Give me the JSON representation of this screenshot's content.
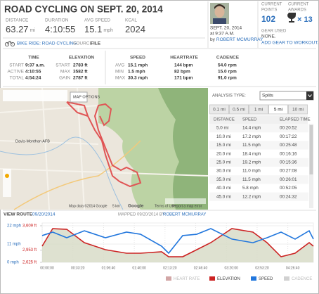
{
  "header": {
    "title": "ROAD CYCLING ON SEPT. 20, 2014",
    "stats": [
      {
        "label": "DISTANCE",
        "value": "63.27",
        "unit": "mi"
      },
      {
        "label": "DURATION",
        "value": "4:10:55"
      },
      {
        "label": "AVG SPEED",
        "value": "15.1",
        "unit": "mph"
      },
      {
        "label": "KCAL",
        "value": "2024"
      }
    ],
    "activity": "BIKE RIDE: ROAD CYCLING",
    "source_label": "SOURCE",
    "source": "FILE"
  },
  "profile": {
    "date": "SEPT. 20, 2014",
    "time": "at 9:37 A.M.",
    "by": "by",
    "user": "ROBERT MCMURRAY",
    "points_label": [
      "CURRENT",
      "POINTS"
    ],
    "points": "102",
    "awards_label": [
      "CURRENT",
      "AWARDS"
    ],
    "awards": "× 13",
    "gear_label": "GEAR USED",
    "gear": "NONE.",
    "gear_link": "ADD GEAR TO WORKOUT."
  },
  "summary": {
    "blocks": [
      {
        "title": "TIME",
        "rows": [
          [
            "START",
            "9:37 a.m."
          ],
          [
            "ACTIVE",
            "4:10:55"
          ],
          [
            "TOTAL",
            "4:54:24"
          ]
        ]
      },
      {
        "title": "ELEVATION",
        "rows": [
          [
            "START",
            "2783 ft"
          ],
          [
            "MAX",
            "3582 ft"
          ],
          [
            "GAIN",
            "2787 ft"
          ]
        ]
      }
    ],
    "row_labels": [
      "AVG",
      "MIN",
      "MAX"
    ],
    "metrics": [
      {
        "title": "SPEED",
        "values": [
          "15.1 mph",
          "1.5 mph",
          "30.3 mph"
        ]
      },
      {
        "title": "HEARTRATE",
        "values": [
          "144 bpm",
          "82 bpm",
          "171 bpm"
        ]
      },
      {
        "title": "CADENCE",
        "values": [
          "54.0 rpm",
          "15.0 rpm",
          "91.0 rpm"
        ]
      }
    ]
  },
  "map": {
    "options": "MAP OPTIONS",
    "place": "Davis-Monthan AFB",
    "attribution": "Map data ©2014 Google",
    "scale": "5 km",
    "terms": "Terms of Use",
    "report": "Report a map error",
    "logo": "Google"
  },
  "splits": {
    "label": "ANALYSIS TYPE:",
    "type": "Splits",
    "tabs": [
      "0.1 mi",
      "0.5 mi",
      "1 mi",
      "5 mi",
      "10 mi"
    ],
    "active_tab": 3,
    "columns": [
      "DISTANCE",
      "SPEED",
      "ELAPSED TIME"
    ],
    "rows": [
      [
        "5.0 mi",
        "14.4 mph",
        "00:20:52"
      ],
      [
        "10.0 mi",
        "17.2 mph",
        "00:17:22"
      ],
      [
        "15.0 mi",
        "11.5 mph",
        "00:25:48"
      ],
      [
        "20.0 mi",
        "18.4 mph",
        "00:16:16"
      ],
      [
        "25.0 mi",
        "19.2 mph",
        "00:15:36"
      ],
      [
        "30.0 mi",
        "11.0 mph",
        "00:27:08"
      ],
      [
        "35.0 mi",
        "11.5 mph",
        "00:26:01"
      ],
      [
        "40.0 mi",
        "5.8 mph",
        "00:52:05"
      ],
      [
        "45.0 mi",
        "12.2 mph",
        "00:24:32"
      ]
    ]
  },
  "route": {
    "view": "VIEW ROUTE",
    "view_date": "09/20/2014",
    "mapped": "MAPPED 09/20/2014 BY",
    "user": "ROBERT MCMURRAY"
  },
  "chart_data": {
    "type": "line",
    "x": [
      0,
      686,
      1602,
      2746,
      4119,
      5491,
      6407,
      7780,
      8237,
      9152,
      10068,
      10983,
      12356,
      13728,
      14643,
      15559,
      16474,
      17389,
      17664
    ],
    "xlim": [
      0,
      17664
    ],
    "xticks": [
      {
        "value": 0,
        "label": "00:00:00"
      },
      {
        "value": 2000,
        "label": "00:33:20"
      },
      {
        "value": 4000,
        "label": "01:06:40"
      },
      {
        "value": 6000,
        "label": "01:40:00"
      },
      {
        "value": 8000,
        "label": "02:13:20"
      },
      {
        "value": 10000,
        "label": "02:46:40"
      },
      {
        "value": 12000,
        "label": "03:20:00"
      },
      {
        "value": 14000,
        "label": "03:53:20"
      },
      {
        "value": 16000,
        "label": "04:26:40"
      }
    ],
    "ylim": [
      0,
      22
    ],
    "yticks": [
      {
        "value": 0,
        "label": "0 mph"
      },
      {
        "value": 11,
        "label": "11 mph"
      },
      {
        "value": 22,
        "label": "22 mph"
      }
    ],
    "y2lim": [
      2625,
      3609
    ],
    "y2ticks": [
      {
        "value": 2625,
        "label": "2,625 ft"
      },
      {
        "value": 2953,
        "label": "2,953 ft"
      },
      {
        "value": 3609,
        "label": "3,609 ft"
      }
    ],
    "series": [
      {
        "name": "HEART RATE",
        "color": "#9b3a3a",
        "visible": false
      },
      {
        "name": "ELEVATION",
        "color": "#cc2222",
        "axis": "y2",
        "visible": true,
        "values": [
          3060,
          3533,
          3514,
          3155,
          2966,
          2871,
          2871,
          2909,
          2776,
          2776,
          2966,
          3155,
          3533,
          3439,
          3155,
          2776,
          2871,
          3155,
          3060
        ]
      },
      {
        "name": "SPEED",
        "color": "#2277dd",
        "visible": true,
        "values": [
          16.1,
          18.2,
          14.8,
          19.0,
          14.8,
          18.2,
          16.9,
          9.7,
          5.5,
          16.1,
          16.9,
          20.3,
          14.0,
          11.8,
          14.8,
          18.2,
          14.0,
          19.0,
          14.0
        ]
      },
      {
        "name": "CADENCE",
        "color": "#999999",
        "visible": false
      }
    ]
  }
}
